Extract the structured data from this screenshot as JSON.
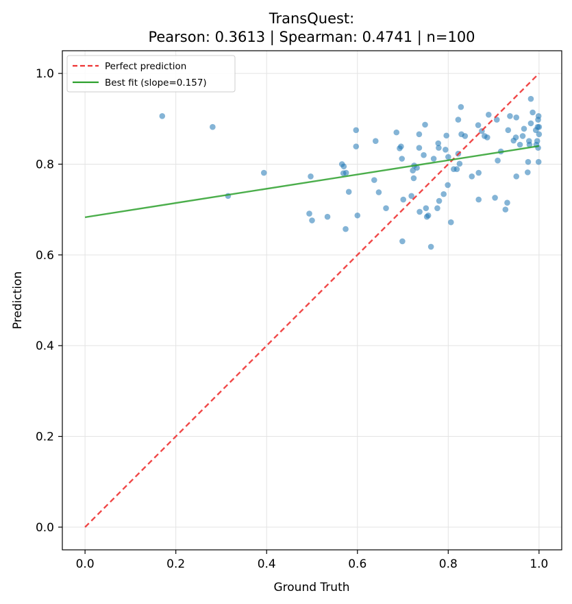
{
  "chart_data": {
    "type": "scatter",
    "title": "TransQuest:",
    "subtitle": "Pearson: 0.3613 | Spearman: 0.4741 | n=100",
    "xlabel": "Ground Truth",
    "ylabel": "Prediction",
    "xlim": [
      -0.05,
      1.05
    ],
    "ylim": [
      -0.05,
      1.05
    ],
    "xticks": [
      "0.0",
      "0.2",
      "0.4",
      "0.6",
      "0.8",
      "1.0"
    ],
    "yticks": [
      "0.0",
      "0.2",
      "0.4",
      "0.6",
      "0.8",
      "1.0"
    ],
    "grid": true,
    "legend_position": "top-left",
    "colors": {
      "points": "#1f77b4",
      "perfect_line": "#ee3333",
      "fit_line": "#2ca02c"
    },
    "series": [
      {
        "kind": "scatter",
        "points": [
          [
            0.17,
            0.906
          ],
          [
            0.281,
            0.882
          ],
          [
            0.315,
            0.73
          ],
          [
            0.394,
            0.781
          ],
          [
            0.494,
            0.691
          ],
          [
            0.497,
            0.773
          ],
          [
            0.5,
            0.676
          ],
          [
            0.534,
            0.684
          ],
          [
            0.566,
            0.8
          ],
          [
            0.569,
            0.78
          ],
          [
            0.57,
            0.795
          ],
          [
            0.574,
            0.657
          ],
          [
            0.575,
            0.781
          ],
          [
            0.581,
            0.739
          ],
          [
            0.597,
            0.875
          ],
          [
            0.597,
            0.839
          ],
          [
            0.6,
            0.687
          ],
          [
            0.637,
            0.765
          ],
          [
            0.64,
            0.851
          ],
          [
            0.647,
            0.738
          ],
          [
            0.663,
            0.703
          ],
          [
            0.686,
            0.87
          ],
          [
            0.693,
            0.835
          ],
          [
            0.696,
            0.839
          ],
          [
            0.698,
            0.812
          ],
          [
            0.699,
            0.63
          ],
          [
            0.701,
            0.722
          ],
          [
            0.719,
            0.73
          ],
          [
            0.722,
            0.786
          ],
          [
            0.724,
            0.769
          ],
          [
            0.725,
            0.797
          ],
          [
            0.731,
            0.792
          ],
          [
            0.736,
            0.866
          ],
          [
            0.736,
            0.836
          ],
          [
            0.737,
            0.695
          ],
          [
            0.746,
            0.82
          ],
          [
            0.749,
            0.887
          ],
          [
            0.751,
            0.703
          ],
          [
            0.753,
            0.684
          ],
          [
            0.756,
            0.687
          ],
          [
            0.762,
            0.618
          ],
          [
            0.768,
            0.812
          ],
          [
            0.776,
            0.703
          ],
          [
            0.778,
            0.846
          ],
          [
            0.779,
            0.836
          ],
          [
            0.78,
            0.719
          ],
          [
            0.79,
            0.734
          ],
          [
            0.794,
            0.832
          ],
          [
            0.796,
            0.863
          ],
          [
            0.799,
            0.754
          ],
          [
            0.8,
            0.816
          ],
          [
            0.806,
            0.672
          ],
          [
            0.812,
            0.789
          ],
          [
            0.819,
            0.789
          ],
          [
            0.822,
            0.898
          ],
          [
            0.822,
            0.823
          ],
          [
            0.825,
            0.801
          ],
          [
            0.828,
            0.926
          ],
          [
            0.829,
            0.866
          ],
          [
            0.837,
            0.862
          ],
          [
            0.852,
            0.773
          ],
          [
            0.866,
            0.886
          ],
          [
            0.867,
            0.722
          ],
          [
            0.867,
            0.781
          ],
          [
            0.874,
            0.873
          ],
          [
            0.88,
            0.862
          ],
          [
            0.886,
            0.859
          ],
          [
            0.889,
            0.909
          ],
          [
            0.903,
            0.726
          ],
          [
            0.907,
            0.898
          ],
          [
            0.909,
            0.808
          ],
          [
            0.916,
            0.828
          ],
          [
            0.926,
            0.7
          ],
          [
            0.93,
            0.715
          ],
          [
            0.932,
            0.875
          ],
          [
            0.936,
            0.906
          ],
          [
            0.944,
            0.852
          ],
          [
            0.949,
            0.859
          ],
          [
            0.95,
            0.903
          ],
          [
            0.95,
            0.773
          ],
          [
            0.958,
            0.843
          ],
          [
            0.964,
            0.862
          ],
          [
            0.967,
            0.878
          ],
          [
            0.975,
            0.782
          ],
          [
            0.976,
            0.805
          ],
          [
            0.978,
            0.851
          ],
          [
            0.979,
            0.843
          ],
          [
            0.982,
            0.944
          ],
          [
            0.982,
            0.89
          ],
          [
            0.986,
            0.914
          ],
          [
            0.993,
            0.875
          ],
          [
            0.994,
            0.843
          ],
          [
            0.996,
            0.851
          ],
          [
            0.997,
            0.882
          ],
          [
            0.998,
            0.898
          ],
          [
            0.998,
            0.836
          ],
          [
            0.999,
            0.805
          ],
          [
            0.999,
            0.906
          ],
          [
            1.0,
            0.866
          ],
          [
            1.0,
            0.882
          ]
        ]
      },
      {
        "kind": "line",
        "name": "Perfect prediction",
        "style": "dashed",
        "x": [
          0.0,
          1.0
        ],
        "y": [
          0.0,
          1.0
        ]
      },
      {
        "kind": "line",
        "name": "Best fit (slope=0.157)",
        "style": "solid",
        "x": [
          0.0,
          1.0
        ],
        "y": [
          0.683,
          0.84
        ]
      }
    ]
  }
}
